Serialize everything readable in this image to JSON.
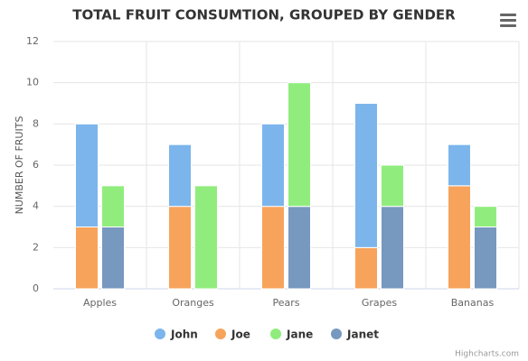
{
  "chart_data": {
    "type": "stacked-grouped-bar",
    "title": "TOTAL FRUIT CONSUMTION, GROUPED BY GENDER",
    "y_label": "NUMBER OF FRUITS",
    "credits": "Highcharts.com",
    "categories": [
      "Apples",
      "Oranges",
      "Pears",
      "Grapes",
      "Bananas"
    ],
    "series": [
      {
        "name": "John",
        "color": "#7cb5ec",
        "stack": 0,
        "values": [
          5,
          3,
          4,
          7,
          2
        ]
      },
      {
        "name": "Joe",
        "color": "#f7a35c",
        "stack": 0,
        "values": [
          3,
          4,
          4,
          2,
          5
        ]
      },
      {
        "name": "Jane",
        "color": "#90ed7d",
        "stack": 1,
        "values": [
          2,
          5,
          6,
          2,
          1
        ]
      },
      {
        "name": "Janet",
        "color": "#7798bf",
        "stack": 1,
        "values": [
          3,
          0,
          4,
          4,
          3
        ]
      }
    ],
    "ylim": [
      0,
      12
    ],
    "yticks": [
      0,
      2,
      4,
      6,
      8,
      10,
      12
    ],
    "grid": true
  }
}
